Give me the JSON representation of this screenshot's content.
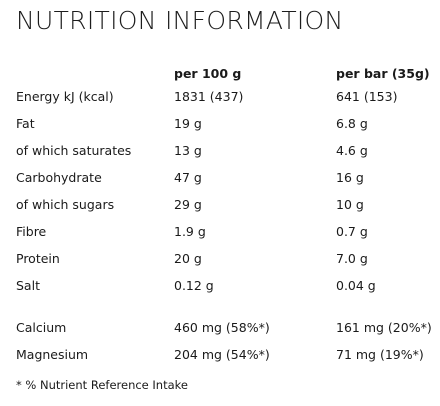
{
  "title": "NUTRITION INFORMATION",
  "headers": {
    "per_100g": "per 100 g",
    "per_bar": "per bar (35g)"
  },
  "rows": [
    {
      "label": "Energy kJ (kcal)",
      "per_100g": "1831 (437)",
      "per_bar": "641 (153)"
    },
    {
      "label": "Fat",
      "per_100g": "19 g",
      "per_bar": "6.8 g"
    },
    {
      "label": "of which saturates",
      "per_100g": "13 g",
      "per_bar": "4.6 g"
    },
    {
      "label": "Carbohydrate",
      "per_100g": "47 g",
      "per_bar": "16 g"
    },
    {
      "label": "of which sugars",
      "per_100g": "29 g",
      "per_bar": "10 g"
    },
    {
      "label": "Fibre",
      "per_100g": "1.9 g",
      "per_bar": "0.7 g"
    },
    {
      "label": "Protein",
      "per_100g": "20 g",
      "per_bar": "7.0 g"
    },
    {
      "label": "Salt",
      "per_100g": "0.12 g",
      "per_bar": "0.04 g"
    },
    {
      "label": "Calcium",
      "per_100g": "460 mg (58%*)",
      "per_bar": "161 mg (20%*)"
    },
    {
      "label": "Magnesium",
      "per_100g": "204 mg (54%*)",
      "per_bar": "71 mg (19%*)"
    }
  ],
  "footnote": "* % Nutrient Reference Intake"
}
